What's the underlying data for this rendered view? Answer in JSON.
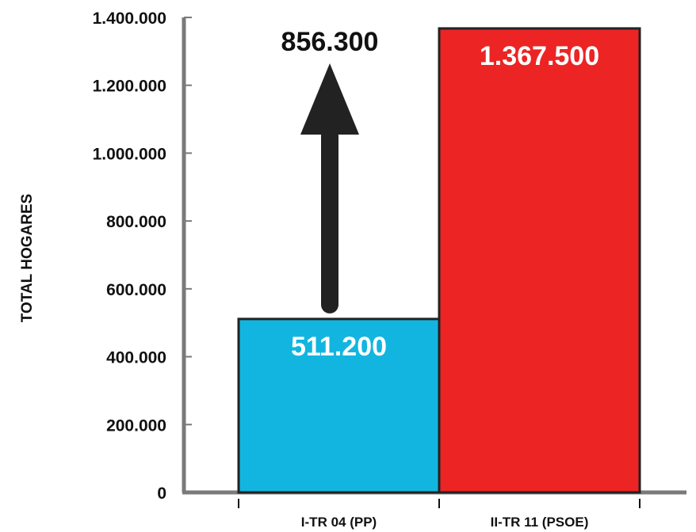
{
  "chart_data": {
    "type": "bar",
    "title": "",
    "ylabel": "TOTAL HOGARES",
    "xlabel": "",
    "ylim": [
      0,
      1400000
    ],
    "yticks": [
      0,
      200000,
      400000,
      600000,
      800000,
      1000000,
      1200000,
      1400000
    ],
    "ytick_labels": [
      "0",
      "200.000",
      "400.000",
      "600.000",
      "800.000",
      "1.000.000",
      "1.200.000",
      "1.400.000"
    ],
    "categories": [
      "I-TR 04 (PP)",
      "II-TR 11 (PSOE)"
    ],
    "values": [
      511200,
      1367500
    ],
    "value_labels": [
      "511.200",
      "1.367.500"
    ],
    "colors": [
      "#12b5e0",
      "#ec2424"
    ],
    "grid": false,
    "annotation": {
      "type": "arrow-up",
      "label": "856.300",
      "value": 856300
    }
  },
  "colors": {
    "axis": "#7a7a7a",
    "bar_outline": "#222222",
    "arrow": "#222222"
  }
}
